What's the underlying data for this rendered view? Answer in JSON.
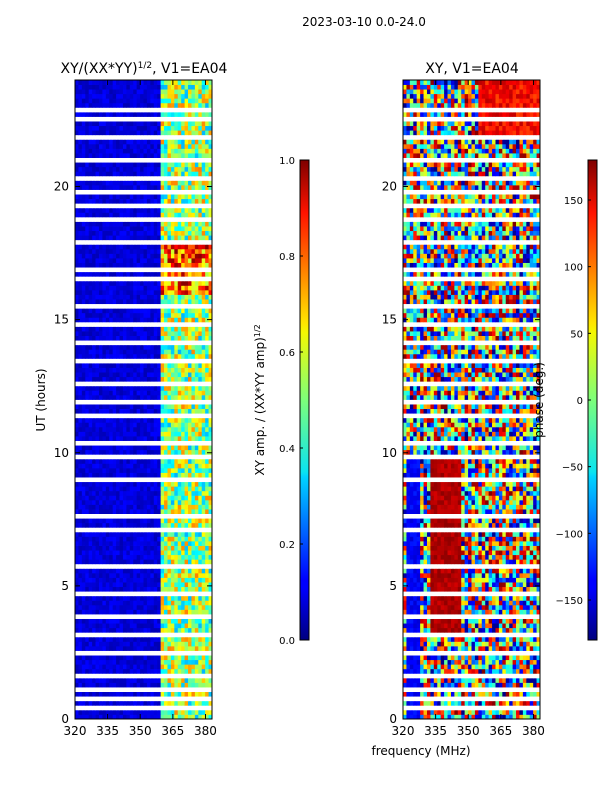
{
  "figure": {
    "suptitle": "2023-03-10 0.0-24.0",
    "xlabel_shared": "frequency (MHz)"
  },
  "chart_data": [
    {
      "type": "heatmap",
      "title": "XY/(XX*YY)",
      "title_superscript": "1/2",
      "title_suffix": ", V1=EA04",
      "xlabel": "",
      "ylabel": "UT (hours)",
      "xlim": [
        320,
        383
      ],
      "ylim": [
        0,
        24
      ],
      "xticks": [
        "320",
        "335",
        "350",
        "365",
        "380"
      ],
      "xtick_values": [
        320,
        335,
        350,
        365,
        380
      ],
      "yticks": [
        "0",
        "5",
        "10",
        "15",
        "20"
      ],
      "ytick_values": [
        0,
        5,
        10,
        15,
        20
      ],
      "colorbar": {
        "label": "XY amp. / (XX*YY amp)",
        "label_superscript": "1/2",
        "range": [
          0.0,
          1.0
        ],
        "ticks": [
          "0.0",
          "0.2",
          "0.4",
          "0.6",
          "0.8",
          "1.0"
        ],
        "tick_values": [
          0.0,
          0.2,
          0.4,
          0.6,
          0.8,
          1.0
        ]
      },
      "description": "Mostly dark blue (~0.0-0.1) below 360 MHz; bright cyan/yellow/orange/red (~0.3-0.9) band between ~360 and ~382 MHz; highest values (~0.8-0.9) around 16-18 h",
      "value_model": {
        "low_band": {
          "freq_range": [
            320,
            360
          ],
          "value": 0.05
        },
        "high_band": {
          "freq_range": [
            360,
            382
          ],
          "value_range": [
            0.3,
            0.9
          ]
        },
        "peak_hours": [
          16,
          18
        ]
      }
    },
    {
      "type": "heatmap",
      "title": "XY",
      "title_suffix": ", V1=EA04",
      "xlabel": "frequency (MHz)",
      "ylabel": "",
      "xlim": [
        320,
        383
      ],
      "ylim": [
        0,
        24
      ],
      "xticks": [
        "320",
        "335",
        "350",
        "365",
        "380"
      ],
      "xtick_values": [
        320,
        335,
        350,
        365,
        380
      ],
      "yticks": [
        "0",
        "5",
        "10",
        "15",
        "20"
      ],
      "ytick_values": [
        0,
        5,
        10,
        15,
        20
      ],
      "colorbar": {
        "label": "phase (deg.)",
        "range": [
          -180,
          180
        ],
        "ticks": [
          "−150",
          "−100",
          "−50",
          "0",
          "50",
          "100",
          "150"
        ],
        "tick_values": [
          -150,
          -100,
          -50,
          0,
          50,
          100,
          150
        ]
      },
      "description": "Phase wraps across full -180 to 180 range; red/orange (~120-170 deg) vertical band near 335-345 MHz for 3-10 h; orange/yellow (~50-150 deg) at top right around 22-24 h; blue (~-150 deg) near 325 MHz",
      "value_model": {
        "red_band": {
          "freq_range": [
            333,
            346
          ],
          "hours": [
            3,
            10
          ],
          "value": 150
        },
        "blue_band": {
          "freq_range": [
            322,
            328
          ],
          "hours": [
            0,
            10
          ],
          "value": -150
        },
        "top_right": {
          "freq_range": [
            355,
            383
          ],
          "hours": [
            22,
            24
          ],
          "value": 110
        }
      }
    }
  ]
}
